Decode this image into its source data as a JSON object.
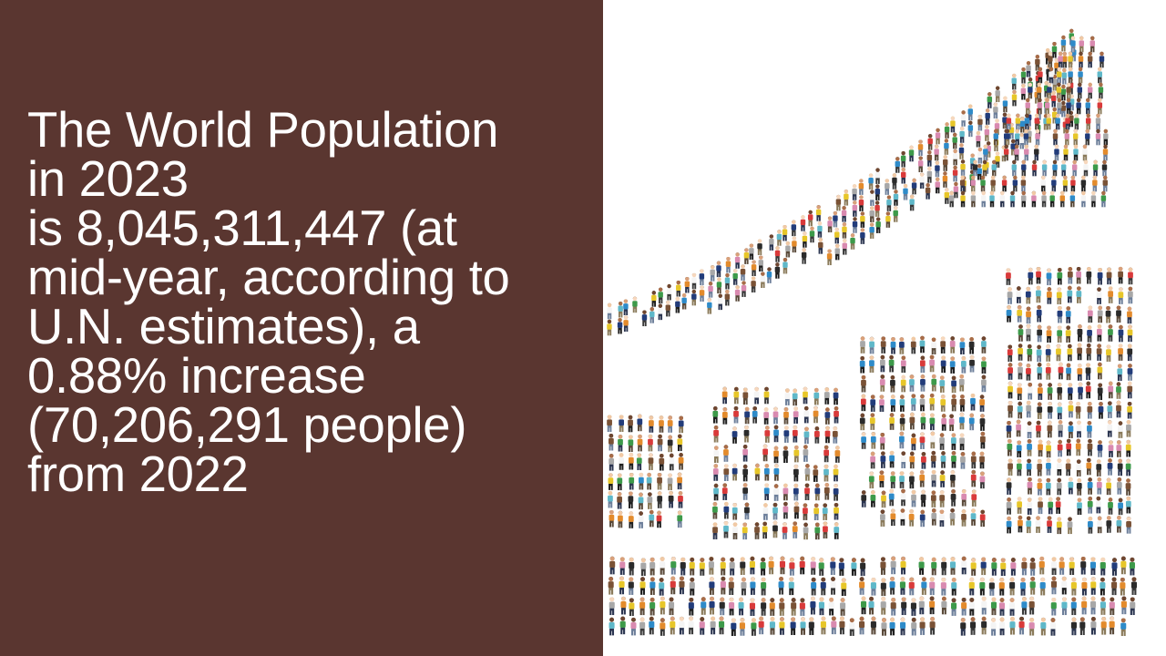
{
  "slide": {
    "background_color": "#5a3630",
    "text_color": "#ffffff",
    "text_lines": [
      "The World Population",
      "in 2023",
      "is 8,045,311,447 (at",
      "mid-year, according to",
      "U.N. estimates), a",
      "0.88% increase",
      "(70,206,291 people)",
      "from 2022"
    ]
  },
  "illustration": {
    "icon": "crowd-growth-chart-image",
    "person_colors": [
      "#d93a3a",
      "#2e8bc9",
      "#3d9a4a",
      "#e7c629",
      "#f4f4f4",
      "#2b2b2b",
      "#7a5236",
      "#d98ab0",
      "#5fb8c9",
      "#e38b2c",
      "#223c7a",
      "#a8a8a8"
    ]
  }
}
